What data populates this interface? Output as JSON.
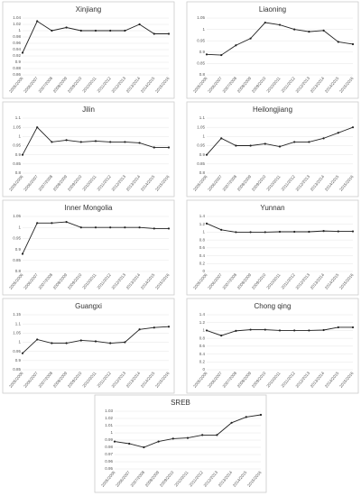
{
  "chart_data": [
    {
      "type": "line",
      "title": "Xinjiang",
      "categories": [
        "2005/2006",
        "2006/2007",
        "2007/2008",
        "2008/2009",
        "2009/2010",
        "2010/2011",
        "2011/2012",
        "2012/2013",
        "2013/2014",
        "2014/2015",
        "2015/2016"
      ],
      "values": [
        0.93,
        1.03,
        1.0,
        1.01,
        1.0,
        1.0,
        1.0,
        1.0,
        1.02,
        0.99,
        0.99
      ],
      "color": "#222222",
      "ylim": [
        0.86,
        1.04
      ],
      "yticks": [
        0.86,
        0.88,
        0.9,
        0.92,
        0.94,
        0.96,
        0.98,
        1,
        1.02,
        1.04
      ],
      "grid": true
    },
    {
      "type": "line",
      "title": "Liaoning",
      "categories": [
        "2005/2006",
        "2006/2007",
        "2007/2008",
        "2008/2009",
        "2009/2010",
        "2010/2011",
        "2011/2012",
        "2012/2013",
        "2013/2014",
        "2014/2015",
        "2015/2016"
      ],
      "values": [
        0.89,
        0.887,
        0.93,
        0.96,
        1.03,
        1.02,
        1.0,
        0.99,
        0.995,
        0.945,
        0.935
      ],
      "color": "#222222",
      "ylim": [
        0.8,
        1.05
      ],
      "yticks": [
        0.8,
        0.85,
        0.9,
        0.95,
        1,
        1.05
      ],
      "grid": true
    },
    {
      "type": "line",
      "title": "Jilin",
      "categories": [
        "2005/2006",
        "2006/2007",
        "2007/2008",
        "2008/2009",
        "2009/2010",
        "2010/2011",
        "2011/2012",
        "2012/2013",
        "2013/2014",
        "2014/2015",
        "2015/2016"
      ],
      "values": [
        0.9,
        1.05,
        0.97,
        0.98,
        0.97,
        0.975,
        0.97,
        0.97,
        0.965,
        0.94,
        0.94
      ],
      "color": "#222222",
      "ylim": [
        0.8,
        1.1
      ],
      "yticks": [
        0.8,
        0.85,
        0.9,
        0.95,
        1,
        1.05,
        1.1
      ],
      "grid": true
    },
    {
      "type": "line",
      "title": "Heilongjiang",
      "categories": [
        "2005/2006",
        "2006/2007",
        "2007/2008",
        "2008/2009",
        "2009/2010",
        "2010/2011",
        "2011/2012",
        "2012/2013",
        "2013/2014",
        "2014/2015",
        "2015/2016"
      ],
      "values": [
        0.9,
        0.99,
        0.95,
        0.95,
        0.96,
        0.945,
        0.97,
        0.97,
        0.99,
        1.02,
        1.05
      ],
      "color": "#222222",
      "ylim": [
        0.8,
        1.1
      ],
      "yticks": [
        0.8,
        0.85,
        0.9,
        0.95,
        1,
        1.05,
        1.1
      ],
      "grid": true
    },
    {
      "type": "line",
      "title": "Inner Mongolia",
      "categories": [
        "2005/2006",
        "2006/2007",
        "2007/2008",
        "2008/2009",
        "2009/2010",
        "2010/2011",
        "2011/2012",
        "2012/2013",
        "2013/2014",
        "2014/2015",
        "2015/2016"
      ],
      "values": [
        0.88,
        1.02,
        1.02,
        1.025,
        1.0,
        1.0,
        1.0,
        1.0,
        1.0,
        0.995,
        0.995
      ],
      "color": "#222222",
      "ylim": [
        0.8,
        1.05
      ],
      "yticks": [
        0.8,
        0.85,
        0.9,
        0.95,
        1,
        1.05
      ],
      "grid": true
    },
    {
      "type": "line",
      "title": "Yunnan",
      "categories": [
        "2005/2006",
        "2006/2007",
        "2007/2008",
        "2008/2009",
        "2009/2010",
        "2010/2011",
        "2011/2012",
        "2012/2013",
        "2013/2014",
        "2014/2015",
        "2015/2016"
      ],
      "values": [
        1.22,
        1.06,
        1.0,
        1.0,
        1.0,
        1.01,
        1.01,
        1.01,
        1.03,
        1.02,
        1.02
      ],
      "color": "#222222",
      "ylim": [
        0,
        1.4
      ],
      "yticks": [
        0,
        0.2,
        0.4,
        0.6,
        0.8,
        1,
        1.2,
        1.4
      ],
      "grid": true
    },
    {
      "type": "line",
      "title": "Guangxi",
      "categories": [
        "2005/2006",
        "2006/2007",
        "2007/2008",
        "2008/2009",
        "2009/2010",
        "2010/2011",
        "2011/2012",
        "2012/2013",
        "2013/2014",
        "2014/2015",
        "2015/2016"
      ],
      "values": [
        0.94,
        1.015,
        0.995,
        0.995,
        1.01,
        1.005,
        0.995,
        1.0,
        1.07,
        1.08,
        1.085
      ],
      "color": "#222222",
      "ylim": [
        0.85,
        1.15
      ],
      "yticks": [
        0.85,
        0.9,
        0.95,
        1,
        1.05,
        1.1,
        1.15
      ],
      "grid": true
    },
    {
      "type": "line",
      "title": "Chong qing",
      "categories": [
        "2005/2006",
        "2006/2007",
        "2007/2008",
        "2008/2009",
        "2009/2010",
        "2010/2011",
        "2011/2012",
        "2012/2013",
        "2013/2014",
        "2014/2015",
        "2015/2016"
      ],
      "values": [
        1.0,
        0.87,
        0.99,
        1.02,
        1.02,
        1.0,
        1.0,
        1.0,
        1.01,
        1.08,
        1.08
      ],
      "color": "#222222",
      "ylim": [
        0,
        1.4
      ],
      "yticks": [
        0,
        0.2,
        0.4,
        0.6,
        0.8,
        1,
        1.2,
        1.4
      ],
      "grid": true
    },
    {
      "type": "line",
      "title": "SREB",
      "categories": [
        "2005/2006",
        "2006/2007",
        "2007/2008",
        "2008/2009",
        "2009/2010",
        "2010/2011",
        "2011/2012",
        "2012/2013",
        "2013/2014",
        "2014/2015",
        "2015/2016"
      ],
      "values": [
        0.988,
        0.985,
        0.98,
        0.988,
        0.992,
        0.993,
        0.997,
        0.997,
        1.014,
        1.022,
        1.025
      ],
      "color": "#222222",
      "ylim": [
        0.95,
        1.03
      ],
      "yticks": [
        0.95,
        0.96,
        0.97,
        0.98,
        0.99,
        1,
        1.01,
        1.02,
        1.03
      ],
      "grid": true
    }
  ]
}
